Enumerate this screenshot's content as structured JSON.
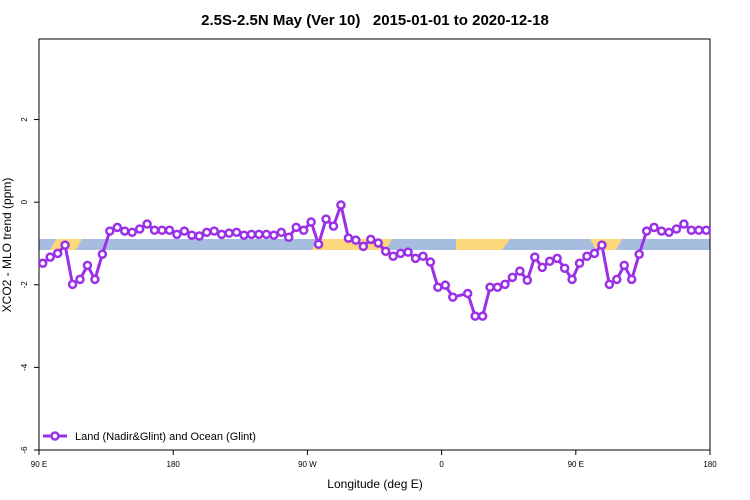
{
  "chart_data": {
    "type": "line",
    "title": "2.5S-2.5N May (Ver 10)   2015-01-01 to 2020-12-18",
    "xlabel": "Longitude (deg E)",
    "ylabel": "XCO2 - MLO trend (ppm)",
    "xlim": [
      90,
      540
    ],
    "ylim": [
      -6,
      3.95
    ],
    "xticks": [
      {
        "value": 90,
        "label": "90 E"
      },
      {
        "value": 180,
        "label": "180"
      },
      {
        "value": 270,
        "label": "90 W"
      },
      {
        "value": 360,
        "label": "0"
      },
      {
        "value": 450,
        "label": "90 E"
      },
      {
        "value": 540,
        "label": "180"
      }
    ],
    "yticks": [
      -6,
      -4,
      -2,
      0,
      2
    ],
    "legend": "bottom-left",
    "x": [
      92.5,
      97.5,
      102.5,
      107.5,
      112.5,
      117.5,
      122.5,
      127.5,
      132.5,
      137.5,
      142.5,
      147.5,
      152.5,
      157.5,
      162.5,
      167.5,
      172.5,
      177.5,
      182.5,
      187.5,
      192.5,
      197.5,
      202.5,
      207.5,
      212.5,
      217.5,
      222.5,
      227.5,
      232.5,
      237.5,
      242.5,
      247.5,
      252.5,
      257.5,
      262.5,
      267.5,
      272.5,
      277.5,
      282.5,
      287.5,
      292.5,
      297.5,
      302.5,
      307.5,
      312.5,
      317.5,
      322.5,
      327.5,
      332.5,
      337.5,
      342.5,
      347.5,
      352.5,
      357.5,
      362.5,
      367.5,
      377.5,
      382.5,
      387.5,
      392.5,
      397.5,
      402.5,
      407.5,
      412.5,
      417.5,
      422.5,
      427.5,
      432.5,
      437.5,
      442.5,
      447.5,
      452.5,
      457.5,
      462.5,
      467.5,
      472.5,
      477.5,
      482.5,
      487.5,
      492.5,
      497.5,
      502.5,
      507.5,
      512.5,
      517.5,
      522.5,
      527.5,
      532.5,
      537.5
    ],
    "series": [
      {
        "name": "Land (Nadir&Glint) and Ocean (Glint)",
        "color": "#9b30e6",
        "values": [
          -1.48,
          -1.33,
          -1.24,
          -1.04,
          -1.99,
          -1.87,
          -1.53,
          -1.87,
          -1.26,
          -0.7,
          -0.61,
          -0.7,
          -0.73,
          -0.65,
          -0.53,
          -0.68,
          -0.68,
          -0.68,
          -0.78,
          -0.7,
          -0.8,
          -0.82,
          -0.73,
          -0.7,
          -0.78,
          -0.75,
          -0.73,
          -0.8,
          -0.78,
          -0.78,
          -0.78,
          -0.8,
          -0.73,
          -0.85,
          -0.61,
          -0.68,
          -0.48,
          -1.02,
          -0.41,
          -0.58,
          -0.07,
          -0.87,
          -0.92,
          -1.07,
          -0.9,
          -0.99,
          -1.19,
          -1.31,
          -1.24,
          -1.21,
          -1.36,
          -1.31,
          -1.45,
          -2.06,
          -2.01,
          -2.3,
          -2.21,
          -2.76,
          -2.76,
          -2.06,
          -2.06,
          -1.99,
          -1.82,
          -1.67,
          -1.89,
          -1.33,
          -1.58,
          -1.43,
          -1.36,
          -1.6,
          -1.87,
          -1.48,
          -1.31,
          -1.24,
          -1.04,
          -1.99,
          -1.87,
          -1.53,
          -1.87,
          -1.26,
          -0.7,
          -0.61,
          -0.7,
          -0.73,
          -0.65,
          -0.53,
          -0.68,
          -0.68,
          -0.68
        ]
      }
    ]
  }
}
